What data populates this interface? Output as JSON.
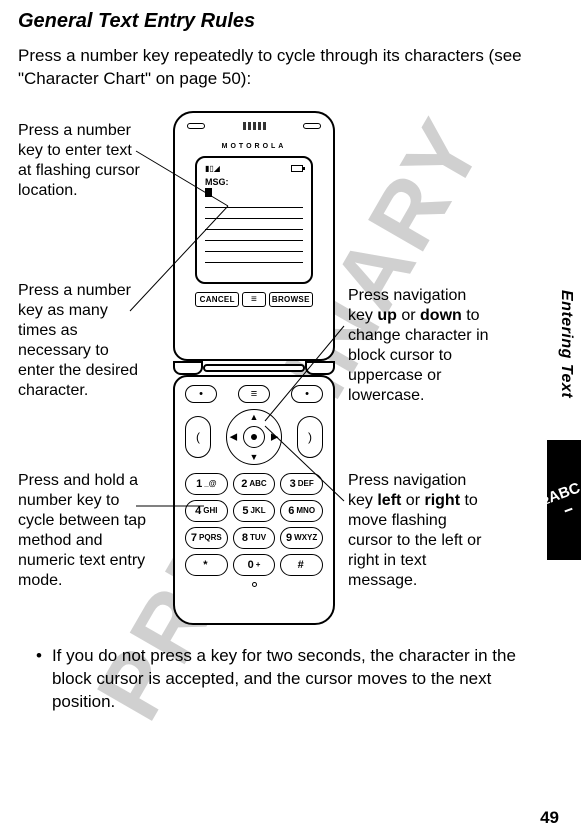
{
  "heading": "General Text Entry Rules",
  "intro": "Press a number key repeatedly to cycle through its characters (see \"Character Chart\" on page 50):",
  "callouts": {
    "left1": "Press a number key to enter text at flashing cursor location.",
    "left2": "Press a number key as many times as necessary to enter the desired character.",
    "left3": "Press and hold a number key to cycle between tap method and numeric text entry mode.",
    "right1_part1": "Press navigation key ",
    "right1_up": "up",
    "right1_mid": " or ",
    "right1_down": "down",
    "right1_part2": " to change character in block cursor to uppercase or lowercase.",
    "right2_part1": "Press navigation key ",
    "right2_left": "left",
    "right2_mid": " or ",
    "right2_right": "right",
    "right2_part2": " to move flashing cursor to the left or right in text message."
  },
  "phone": {
    "brand": "MOTOROLA",
    "msg_label": "MSG:",
    "softkeys": {
      "left": "CANCEL",
      "middle": "≡",
      "right": "BROWSE"
    },
    "top_buttons": {
      "left": "•",
      "middle": "≡",
      "right": "•"
    },
    "side_left": "(",
    "side_right": ")",
    "keys": [
      {
        "num": "1",
        "txt": "_@"
      },
      {
        "num": "2",
        "txt": "ABC"
      },
      {
        "num": "3",
        "txt": "DEF"
      },
      {
        "num": "4",
        "txt": "GHI"
      },
      {
        "num": "5",
        "txt": "JKL"
      },
      {
        "num": "6",
        "txt": "MNO"
      },
      {
        "num": "7",
        "txt": "PQRS"
      },
      {
        "num": "8",
        "txt": "TUV"
      },
      {
        "num": "9",
        "txt": "WXYZ"
      },
      {
        "num": "*",
        "txt": ""
      },
      {
        "num": "0",
        "txt": "+"
      },
      {
        "num": "#",
        "txt": ""
      }
    ]
  },
  "bullet": "If you do not press a key for two seconds, the character in the block cursor is accepted, and the cursor moves to the next position.",
  "side_label": "Entering Text",
  "watermark": "PRELIMINARY",
  "page_number": "49"
}
